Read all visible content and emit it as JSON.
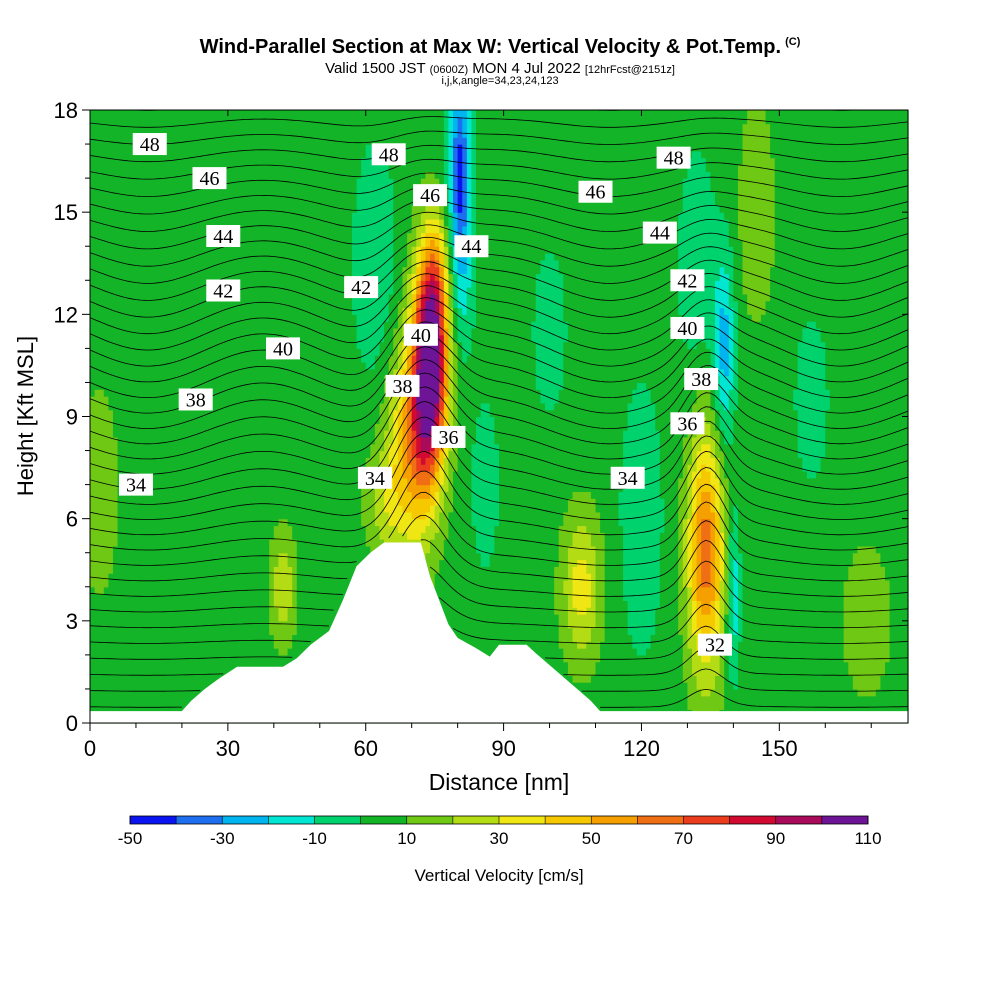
{
  "title": {
    "main": "Wind-Parallel Section at Max W: Vertical Velocity & Pot.Temp.",
    "copyright": "(C)",
    "valid_prefix": "Valid 1500 JST",
    "valid_utc": "(0600Z)",
    "valid_date": "MON 4 Jul 2022",
    "forecast": "[12hrFcst@2151z]",
    "params": "i,j,k,angle=34,23,24,123"
  },
  "colors": {
    "palette": [
      "#0a14f0",
      "#1e6ef0",
      "#00b4f0",
      "#00e6d2",
      "#00d26e",
      "#14b428",
      "#6ec814",
      "#b4dc14",
      "#f0e614",
      "#f5c800",
      "#f5a000",
      "#f06e14",
      "#eb3c1e",
      "#d20a32",
      "#aa0a5a",
      "#6e1496"
    ],
    "contour": "#000000",
    "terrain": "#ffffff"
  },
  "chart_data": {
    "type": "heatmap",
    "title": "Wind-Parallel Section at Max W: Vertical Velocity & Pot.Temp.",
    "xlabel": "Distance [nm]",
    "ylabel": "Height [Kft MSL]",
    "xlim": [
      0,
      178
    ],
    "ylim": [
      0,
      18
    ],
    "xticks": [
      "0",
      "30",
      "60",
      "90",
      "120",
      "150"
    ],
    "yticks": [
      "0",
      "3",
      "6",
      "9",
      "12",
      "15",
      "18"
    ],
    "colorbar": {
      "label": "Vertical Velocity [cm/s]",
      "min": -50,
      "max": 110,
      "step": 10,
      "tick_labels": [
        "-50",
        "-30",
        "-10",
        "10",
        "30",
        "50",
        "70",
        "90",
        "110"
      ]
    },
    "background_w": 5,
    "updrafts": [
      {
        "x": 74,
        "y": 10.5,
        "sx": 2.6,
        "sy": 2.2,
        "w": 110
      },
      {
        "x": 70,
        "y": 8.2,
        "sx": 3.5,
        "sy": 2.2,
        "w": 45
      },
      {
        "x": 75,
        "y": 13.0,
        "sx": 2.0,
        "sy": 1.3,
        "w": 25
      },
      {
        "x": 134,
        "y": 5.0,
        "sx": 2.8,
        "sy": 2.5,
        "w": 60
      },
      {
        "x": 107,
        "y": 4.0,
        "sx": 3.0,
        "sy": 1.5,
        "w": 30
      },
      {
        "x": 42,
        "y": 4.0,
        "sx": 2.0,
        "sy": 1.2,
        "w": 22
      },
      {
        "x": 64,
        "y": 6.5,
        "sx": 3.0,
        "sy": 1.2,
        "w": 18
      },
      {
        "x": 169,
        "y": 3.0,
        "sx": 3.5,
        "sy": 1.5,
        "w": 15
      },
      {
        "x": 145,
        "y": 15.0,
        "sx": 3.0,
        "sy": 2.5,
        "w": 12
      },
      {
        "x": 2,
        "y": 6.8,
        "sx": 7.0,
        "sy": 5.0,
        "w": 6
      }
    ],
    "downdrafts": [
      {
        "x": 80.5,
        "y": 16.2,
        "sx": 1.6,
        "sy": 2.0,
        "w": -48
      },
      {
        "x": 81,
        "y": 12.8,
        "sx": 1.8,
        "sy": 1.6,
        "w": -14
      },
      {
        "x": 138,
        "y": 11.0,
        "sx": 1.6,
        "sy": 2.0,
        "w": -30
      },
      {
        "x": 140,
        "y": 3.8,
        "sx": 1.0,
        "sy": 1.8,
        "w": -25
      },
      {
        "x": 132,
        "y": 13.5,
        "sx": 3.0,
        "sy": 2.5,
        "w": -12
      },
      {
        "x": 62,
        "y": 13.5,
        "sx": 3.5,
        "sy": 2.5,
        "w": -14
      },
      {
        "x": 86,
        "y": 7.0,
        "sx": 2.5,
        "sy": 2.0,
        "w": -10
      },
      {
        "x": 120,
        "y": 6.0,
        "sx": 3.5,
        "sy": 3.0,
        "w": -12
      },
      {
        "x": 157,
        "y": 9.5,
        "sx": 3.0,
        "sy": 2.0,
        "w": -10
      },
      {
        "x": 100,
        "y": 11.5,
        "sx": 3.0,
        "sy": 2.0,
        "w": -10
      }
    ],
    "theta_contours": {
      "levels_start": 30,
      "levels_end": 49,
      "labels": [
        {
          "text": "48",
          "x": 13,
          "y": 17.0
        },
        {
          "text": "46",
          "x": 26,
          "y": 16.0
        },
        {
          "text": "44",
          "x": 29,
          "y": 14.3
        },
        {
          "text": "42",
          "x": 29,
          "y": 12.7
        },
        {
          "text": "40",
          "x": 42,
          "y": 11.0
        },
        {
          "text": "38",
          "x": 23,
          "y": 9.5
        },
        {
          "text": "34",
          "x": 10,
          "y": 7.0
        },
        {
          "text": "48",
          "x": 65,
          "y": 16.7
        },
        {
          "text": "46",
          "x": 74,
          "y": 15.5
        },
        {
          "text": "44",
          "x": 83,
          "y": 14.0
        },
        {
          "text": "42",
          "x": 59,
          "y": 12.8
        },
        {
          "text": "40",
          "x": 72,
          "y": 11.4
        },
        {
          "text": "38",
          "x": 68,
          "y": 9.9
        },
        {
          "text": "36",
          "x": 78,
          "y": 8.4
        },
        {
          "text": "34",
          "x": 62,
          "y": 7.2
        },
        {
          "text": "48",
          "x": 127,
          "y": 16.6
        },
        {
          "text": "46",
          "x": 110,
          "y": 15.6
        },
        {
          "text": "44",
          "x": 124,
          "y": 14.4
        },
        {
          "text": "42",
          "x": 130,
          "y": 13.0
        },
        {
          "text": "40",
          "x": 130,
          "y": 11.6
        },
        {
          "text": "38",
          "x": 133,
          "y": 10.1
        },
        {
          "text": "36",
          "x": 130,
          "y": 8.8
        },
        {
          "text": "34",
          "x": 117,
          "y": 7.2
        },
        {
          "text": "32",
          "x": 136,
          "y": 2.3
        }
      ]
    },
    "terrain_kft": [
      [
        0,
        0.35
      ],
      [
        20,
        0.35
      ],
      [
        22,
        0.65
      ],
      [
        25,
        1.0
      ],
      [
        28,
        1.3
      ],
      [
        32,
        1.65
      ],
      [
        42,
        1.65
      ],
      [
        45,
        1.9
      ],
      [
        48,
        2.3
      ],
      [
        52,
        2.7
      ],
      [
        55,
        3.6
      ],
      [
        58,
        4.6
      ],
      [
        61,
        5.0
      ],
      [
        64,
        5.3
      ],
      [
        72,
        5.3
      ],
      [
        74,
        4.3
      ],
      [
        76,
        3.6
      ],
      [
        78,
        2.9
      ],
      [
        80,
        2.5
      ],
      [
        84,
        2.2
      ],
      [
        87,
        1.95
      ],
      [
        89,
        2.3
      ],
      [
        95,
        2.3
      ],
      [
        97,
        2.05
      ],
      [
        100,
        1.7
      ],
      [
        103,
        1.35
      ],
      [
        106,
        1.0
      ],
      [
        109,
        0.65
      ],
      [
        111,
        0.35
      ],
      [
        178,
        0.35
      ]
    ]
  }
}
